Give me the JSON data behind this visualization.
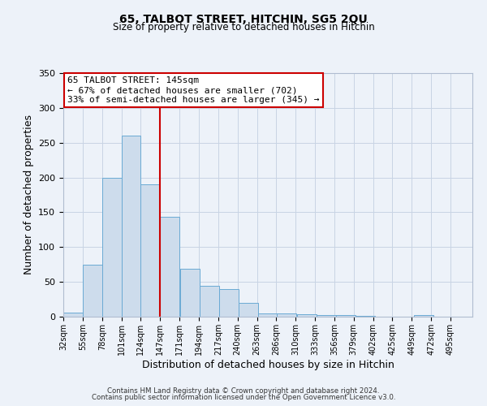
{
  "title": "65, TALBOT STREET, HITCHIN, SG5 2QU",
  "subtitle": "Size of property relative to detached houses in Hitchin",
  "xlabel": "Distribution of detached houses by size in Hitchin",
  "ylabel": "Number of detached properties",
  "bar_left_edges": [
    32,
    55,
    78,
    101,
    124,
    147,
    171,
    194,
    217,
    240,
    263,
    286,
    310,
    333,
    356,
    379,
    402,
    425,
    449,
    472
  ],
  "bar_heights": [
    6,
    75,
    200,
    260,
    190,
    143,
    69,
    44,
    40,
    20,
    5,
    5,
    3,
    2,
    2,
    1,
    0,
    0,
    2,
    0
  ],
  "bin_width": 23,
  "tick_labels": [
    "32sqm",
    "55sqm",
    "78sqm",
    "101sqm",
    "124sqm",
    "147sqm",
    "171sqm",
    "194sqm",
    "217sqm",
    "240sqm",
    "263sqm",
    "286sqm",
    "310sqm",
    "333sqm",
    "356sqm",
    "379sqm",
    "402sqm",
    "425sqm",
    "449sqm",
    "472sqm",
    "495sqm"
  ],
  "bar_color": "#cddcec",
  "bar_edge_color": "#6aaad4",
  "property_line_x": 147,
  "annotation_line1": "65 TALBOT STREET: 145sqm",
  "annotation_line2": "← 67% of detached houses are smaller (702)",
  "annotation_line3": "33% of semi-detached houses are larger (345) →",
  "box_color": "#ffffff",
  "box_edge_color": "#cc0000",
  "vline_color": "#cc0000",
  "ylim": [
    0,
    350
  ],
  "yticks": [
    0,
    50,
    100,
    150,
    200,
    250,
    300,
    350
  ],
  "grid_color": "#c8d4e4",
  "bg_color": "#edf2f9",
  "footer_line1": "Contains HM Land Registry data © Crown copyright and database right 2024.",
  "footer_line2": "Contains public sector information licensed under the Open Government Licence v3.0."
}
